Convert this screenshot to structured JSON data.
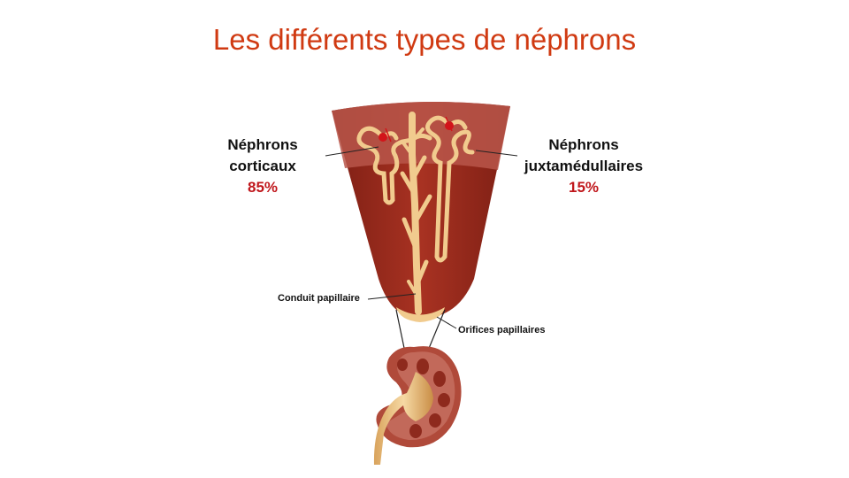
{
  "title": "Les différents types de néphrons",
  "cortical": {
    "line1": "Néphrons",
    "line2": "corticaux",
    "percent": "85%"
  },
  "juxta": {
    "line1": "Néphrons",
    "line2": "juxtamédullaires",
    "percent": "15%"
  },
  "labels": {
    "duct": "Conduit  papillaire",
    "orifices": "Orifices papillaires"
  },
  "colors": {
    "title": "#d03a12",
    "percent": "#c0171c",
    "cortex": "#b9564a",
    "medulla": "#9e2c1e",
    "tubule": "#f1cb8e",
    "glomerulus": "#d2141a"
  }
}
